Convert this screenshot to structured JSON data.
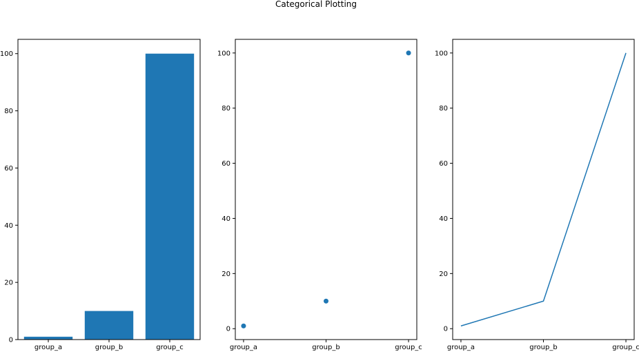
{
  "figure": {
    "suptitle": "Categorical Plotting"
  },
  "style": {
    "series_color": "#1f77b4",
    "axis_color": "#000000"
  },
  "chart_data": [
    {
      "type": "bar",
      "categories": [
        "group_a",
        "group_b",
        "group_c"
      ],
      "values": [
        1,
        10,
        100
      ],
      "ylim": [
        0,
        105
      ],
      "yticks": [
        0,
        20,
        40,
        60,
        80,
        100
      ],
      "grid": false
    },
    {
      "type": "scatter",
      "categories": [
        "group_a",
        "group_b",
        "group_c"
      ],
      "values": [
        1,
        10,
        100
      ],
      "ylim": [
        -3.95,
        104.95
      ],
      "yticks": [
        0,
        20,
        40,
        60,
        80,
        100
      ],
      "grid": false
    },
    {
      "type": "line",
      "categories": [
        "group_a",
        "group_b",
        "group_c"
      ],
      "values": [
        1,
        10,
        100
      ],
      "ylim": [
        -3.95,
        104.95
      ],
      "yticks": [
        0,
        20,
        40,
        60,
        80,
        100
      ],
      "grid": false
    }
  ]
}
